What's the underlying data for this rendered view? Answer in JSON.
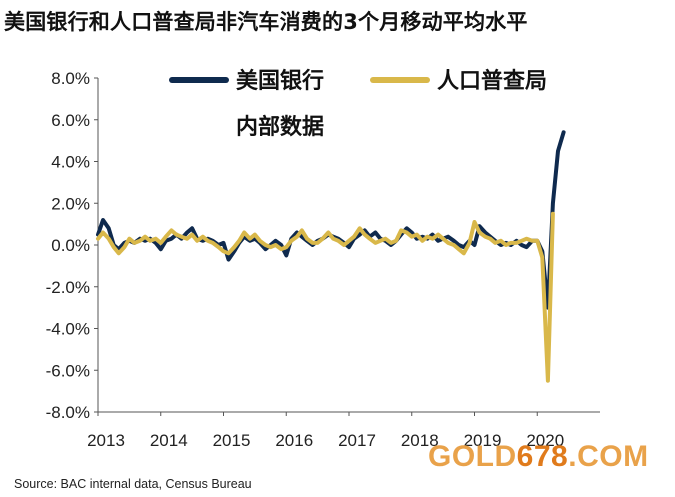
{
  "title": "美国银行和人口普查局非汽车消费的3个月移动平均水平",
  "source": "Source: BAC internal data, Census Bureau",
  "watermark": {
    "part1": "GOLD",
    "part2": "678",
    "part3": ".COM"
  },
  "colors": {
    "bac": "#0f2a4e",
    "census": "#d9b84a",
    "axis": "#555555"
  },
  "chart_data": {
    "type": "line",
    "ylim": [
      -8.0,
      8.0
    ],
    "y_ticks": [
      8.0,
      6.0,
      4.0,
      2.0,
      0.0,
      -2.0,
      -4.0,
      -6.0,
      -8.0
    ],
    "y_tick_labels": [
      "8.0%",
      "6.0%",
      "4.0%",
      "2.0%",
      "0.0%",
      "-2.0%",
      "-4.0%",
      "-6.0%",
      "-8.0%"
    ],
    "xlim": [
      2013.0,
      2021.0
    ],
    "x_ticks": [
      2013,
      2014,
      2015,
      2016,
      2017,
      2018,
      2019,
      2020
    ],
    "x_tick_labels": [
      "2013",
      "2014",
      "2015",
      "2016",
      "2017",
      "2018",
      "2019",
      "2020"
    ],
    "legend": {
      "placement": "top",
      "entries": [
        "美国银行",
        "人口普查局"
      ],
      "subtitle": "内部数据"
    },
    "series": [
      {
        "name": "美国银行",
        "color": "#0f2a4e",
        "x": [
          2013.0,
          2013.08,
          2013.17,
          2013.25,
          2013.33,
          2013.42,
          2013.5,
          2013.58,
          2013.67,
          2013.75,
          2013.83,
          2013.92,
          2014.0,
          2014.08,
          2014.17,
          2014.25,
          2014.33,
          2014.42,
          2014.5,
          2014.58,
          2014.67,
          2014.75,
          2014.83,
          2014.92,
          2015.0,
          2015.08,
          2015.17,
          2015.25,
          2015.33,
          2015.42,
          2015.5,
          2015.58,
          2015.67,
          2015.75,
          2015.83,
          2015.92,
          2016.0,
          2016.08,
          2016.17,
          2016.25,
          2016.33,
          2016.42,
          2016.5,
          2016.58,
          2016.67,
          2016.75,
          2016.83,
          2016.92,
          2017.0,
          2017.08,
          2017.17,
          2017.25,
          2017.33,
          2017.42,
          2017.5,
          2017.58,
          2017.67,
          2017.75,
          2017.83,
          2017.92,
          2018.0,
          2018.08,
          2018.17,
          2018.25,
          2018.33,
          2018.42,
          2018.5,
          2018.58,
          2018.67,
          2018.75,
          2018.83,
          2018.92,
          2019.0,
          2019.08,
          2019.17,
          2019.25,
          2019.33,
          2019.42,
          2019.5,
          2019.58,
          2019.67,
          2019.75,
          2019.83,
          2019.92,
          2020.0,
          2020.08,
          2020.17,
          2020.25,
          2020.33,
          2020.42,
          2020.5
        ],
        "values": [
          0.5,
          1.2,
          0.8,
          0.0,
          -0.2,
          0.1,
          0.2,
          0.1,
          0.3,
          0.2,
          0.3,
          0.1,
          -0.2,
          0.2,
          0.3,
          0.5,
          0.3,
          0.6,
          0.8,
          0.3,
          0.2,
          0.3,
          0.2,
          0.0,
          0.1,
          -0.7,
          -0.3,
          0.1,
          0.4,
          0.2,
          0.3,
          0.1,
          -0.2,
          0.0,
          0.2,
          0.0,
          -0.5,
          0.3,
          0.6,
          0.4,
          0.2,
          0.0,
          0.2,
          0.3,
          0.5,
          0.4,
          0.3,
          0.1,
          -0.1,
          0.3,
          0.5,
          0.7,
          0.4,
          0.6,
          0.3,
          0.2,
          0.0,
          0.2,
          0.5,
          0.8,
          0.6,
          0.3,
          0.4,
          0.3,
          0.5,
          0.2,
          0.3,
          0.4,
          0.2,
          0.0,
          -0.1,
          0.2,
          0.0,
          0.9,
          0.6,
          0.4,
          0.2,
          0.0,
          0.1,
          0.0,
          0.2,
          0.0,
          -0.1,
          0.2,
          0.2,
          -0.3,
          -3.0,
          2.0,
          4.5,
          5.4,
          null
        ]
      },
      {
        "name": "人口普查局",
        "color": "#d9b84a",
        "x": [
          2013.0,
          2013.08,
          2013.17,
          2013.25,
          2013.33,
          2013.42,
          2013.5,
          2013.58,
          2013.67,
          2013.75,
          2013.83,
          2013.92,
          2014.0,
          2014.08,
          2014.17,
          2014.25,
          2014.33,
          2014.42,
          2014.5,
          2014.58,
          2014.67,
          2014.75,
          2014.83,
          2014.92,
          2015.0,
          2015.08,
          2015.17,
          2015.25,
          2015.33,
          2015.42,
          2015.5,
          2015.58,
          2015.67,
          2015.75,
          2015.83,
          2015.92,
          2016.0,
          2016.08,
          2016.17,
          2016.25,
          2016.33,
          2016.42,
          2016.5,
          2016.58,
          2016.67,
          2016.75,
          2016.83,
          2016.92,
          2017.0,
          2017.08,
          2017.17,
          2017.25,
          2017.33,
          2017.42,
          2017.5,
          2017.58,
          2017.67,
          2017.75,
          2017.83,
          2017.92,
          2018.0,
          2018.08,
          2018.17,
          2018.25,
          2018.33,
          2018.42,
          2018.5,
          2018.58,
          2018.67,
          2018.75,
          2018.83,
          2018.92,
          2019.0,
          2019.08,
          2019.17,
          2019.25,
          2019.33,
          2019.42,
          2019.5,
          2019.58,
          2019.67,
          2019.75,
          2019.83,
          2019.92,
          2020.0,
          2020.08,
          2020.17,
          2020.25,
          2020.33,
          2020.42,
          2020.5
        ],
        "values": [
          0.3,
          0.6,
          0.3,
          -0.1,
          -0.4,
          -0.1,
          0.3,
          0.1,
          0.2,
          0.4,
          0.2,
          0.3,
          0.1,
          0.4,
          0.7,
          0.5,
          0.4,
          0.3,
          0.5,
          0.2,
          0.4,
          0.2,
          0.1,
          -0.1,
          -0.3,
          -0.4,
          -0.1,
          0.2,
          0.6,
          0.3,
          0.5,
          0.2,
          0.0,
          -0.1,
          0.0,
          -0.2,
          -0.1,
          0.2,
          0.4,
          0.7,
          0.3,
          0.1,
          0.1,
          0.3,
          0.6,
          0.3,
          0.2,
          0.0,
          0.2,
          0.4,
          0.8,
          0.5,
          0.3,
          0.1,
          0.2,
          0.3,
          0.1,
          0.2,
          0.7,
          0.6,
          0.4,
          0.5,
          0.2,
          0.4,
          0.3,
          0.5,
          0.3,
          0.1,
          0.0,
          -0.2,
          -0.4,
          0.1,
          1.1,
          0.6,
          0.4,
          0.3,
          0.1,
          0.2,
          0.0,
          0.1,
          0.1,
          0.2,
          0.3,
          0.2,
          0.2,
          -0.6,
          -6.5,
          1.5,
          null,
          null,
          null
        ]
      }
    ]
  }
}
